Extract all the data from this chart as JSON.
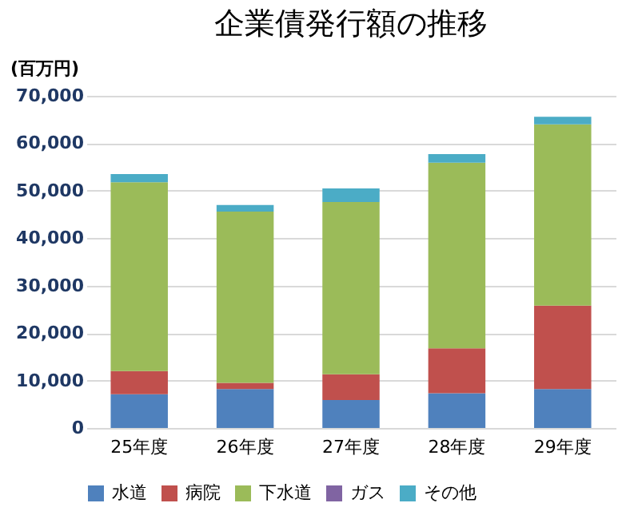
{
  "chart_data": {
    "type": "bar",
    "title": "企業債発行額の推移",
    "ylabel": "(百万円)",
    "stacked": true,
    "grid": "y",
    "legend": "bottom",
    "categories": [
      "25年度",
      "26年度",
      "27年度",
      "28年度",
      "29年度"
    ],
    "ylim": [
      0,
      70000
    ],
    "yticks": [
      0,
      {
        "value": 10000,
        "label": "10,000"
      },
      {
        "value": 20000,
        "label": "20,000"
      },
      {
        "value": 30000,
        "label": "30,000"
      },
      {
        "value": 40000,
        "label": "40,000"
      },
      {
        "value": 50000,
        "label": "50,000"
      },
      {
        "value": 60000,
        "label": "60,000"
      },
      {
        "value": 70000,
        "label": "70,000"
      }
    ],
    "series": [
      {
        "name": "水道",
        "color": "#4f81bd",
        "values": [
          7100,
          8200,
          5900,
          7300,
          8200
        ]
      },
      {
        "name": "病院",
        "color": "#c0504d",
        "values": [
          4900,
          1300,
          5400,
          9500,
          17600
        ]
      },
      {
        "name": "下水道",
        "color": "#9bbb59",
        "values": [
          39800,
          36100,
          36300,
          39100,
          38200
        ]
      },
      {
        "name": "ガス",
        "color": "#8064a2",
        "values": [
          0,
          0,
          0,
          0,
          0
        ]
      },
      {
        "name": "その他",
        "color": "#4bacc6",
        "values": [
          1700,
          1400,
          2900,
          1800,
          1600
        ]
      }
    ]
  }
}
